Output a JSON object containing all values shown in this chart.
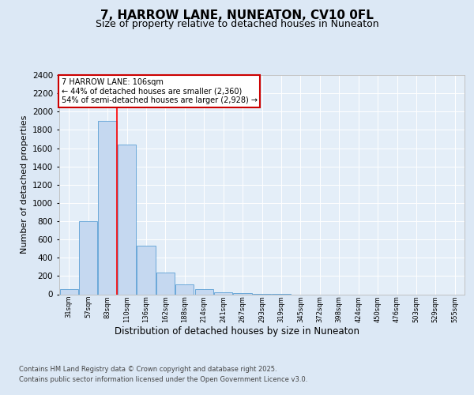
{
  "title": "7, HARROW LANE, NUNEATON, CV10 0FL",
  "subtitle": "Size of property relative to detached houses in Nuneaton",
  "xlabel": "Distribution of detached houses by size in Nuneaton",
  "ylabel": "Number of detached properties",
  "categories": [
    "31sqm",
    "57sqm",
    "83sqm",
    "110sqm",
    "136sqm",
    "162sqm",
    "188sqm",
    "214sqm",
    "241sqm",
    "267sqm",
    "293sqm",
    "319sqm",
    "345sqm",
    "372sqm",
    "398sqm",
    "424sqm",
    "450sqm",
    "476sqm",
    "503sqm",
    "529sqm",
    "555sqm"
  ],
  "values": [
    55,
    800,
    1900,
    1640,
    535,
    235,
    110,
    52,
    25,
    10,
    5,
    2,
    0,
    0,
    0,
    0,
    0,
    0,
    0,
    0,
    0
  ],
  "bar_color": "#c5d8f0",
  "bar_edge_color": "#5a9fd4",
  "red_line_x": 2.5,
  "annotation_title": "7 HARROW LANE: 106sqm",
  "annotation_line1": "← 44% of detached houses are smaller (2,360)",
  "annotation_line2": "54% of semi-detached houses are larger (2,928) →",
  "footer1": "Contains HM Land Registry data © Crown copyright and database right 2025.",
  "footer2": "Contains public sector information licensed under the Open Government Licence v3.0.",
  "ylim": [
    0,
    2400
  ],
  "yticks": [
    0,
    200,
    400,
    600,
    800,
    1000,
    1200,
    1400,
    1600,
    1800,
    2000,
    2200,
    2400
  ],
  "bg_color": "#dce8f5",
  "plot_bg_color": "#e4eef8",
  "title_fontsize": 11,
  "subtitle_fontsize": 9,
  "annotation_box_color": "#ffffff",
  "annotation_box_edge": "#cc0000"
}
